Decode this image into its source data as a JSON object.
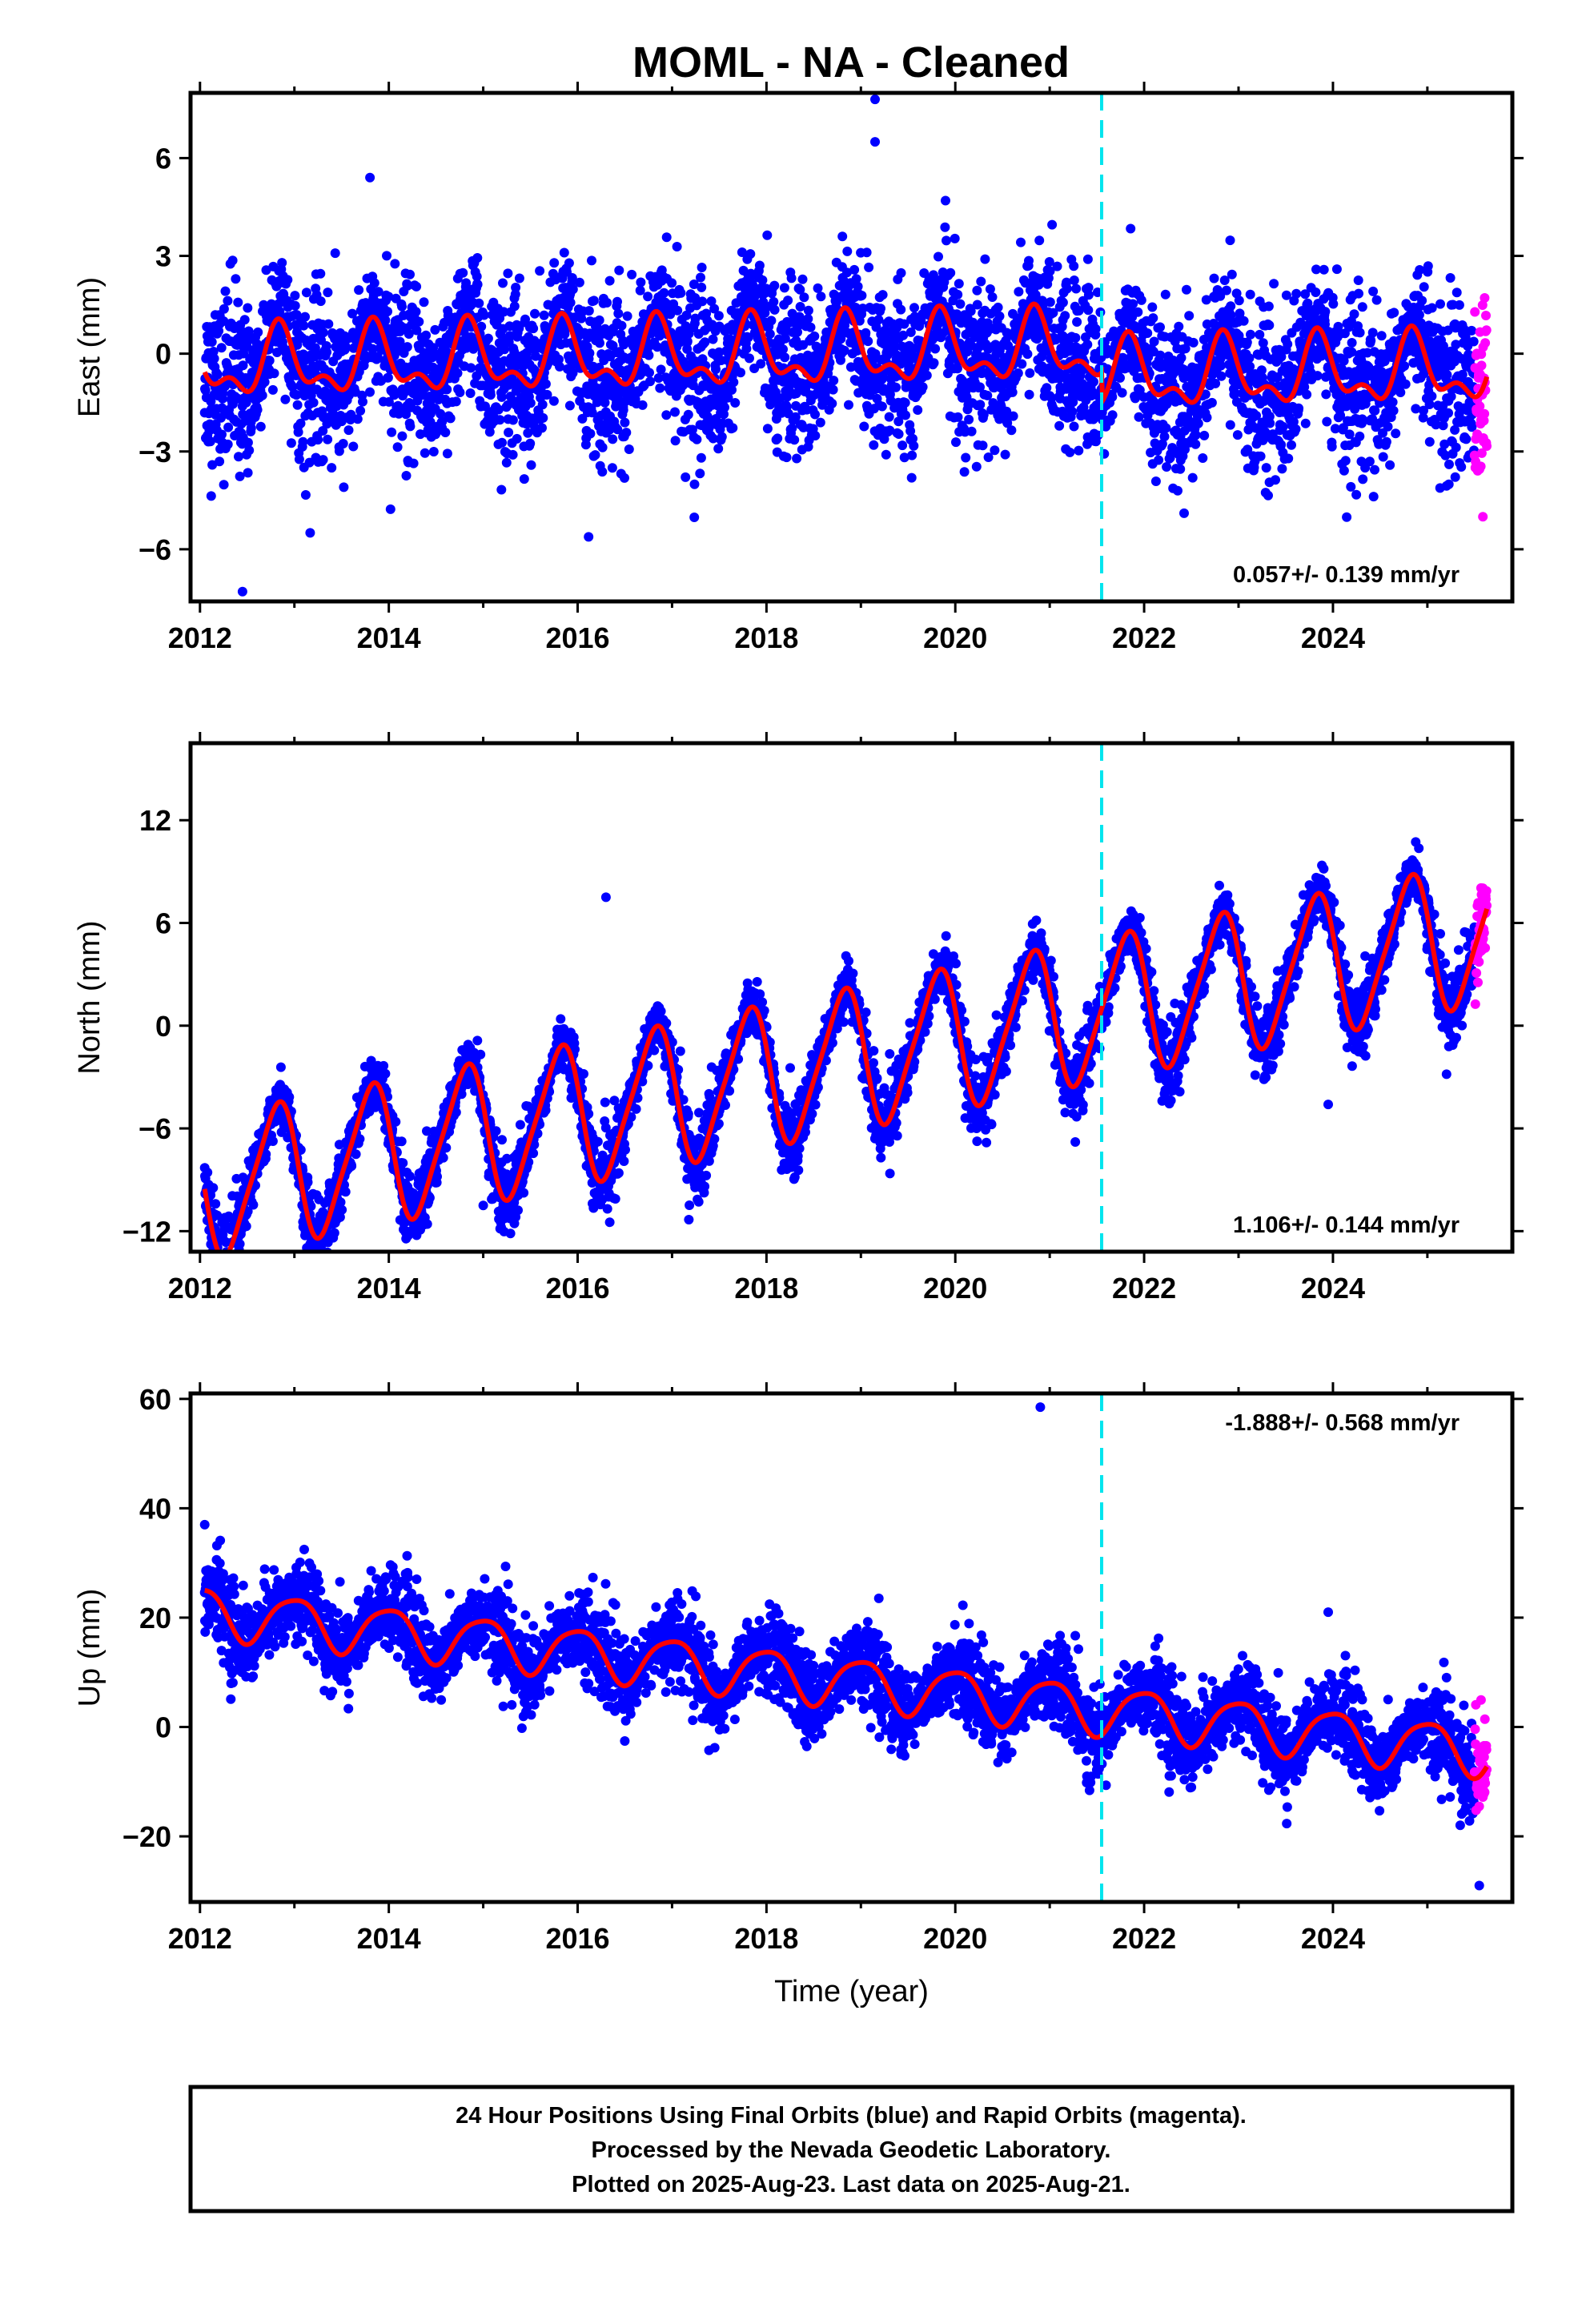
{
  "title": "MOML  - NA - Cleaned",
  "caption": {
    "line1": "24 Hour Positions Using Final Orbits (blue) and Rapid Orbits (magenta).",
    "line2": "Processed by the Nevada Geodetic Laboratory.",
    "line3": "Plotted on 2025-Aug-23. Last data on 2025-Aug-21."
  },
  "colors": {
    "final_orbit_points": "#0000ff",
    "rapid_orbit_points": "#ff00ff",
    "model_fit": "#ff0000",
    "event_line": "#00e5ee",
    "frame": "#000000"
  },
  "chart_data": [
    {
      "type": "scatter",
      "ylabel": "East (mm)",
      "xlabel": "",
      "x_ticks": [
        "2012",
        "2014",
        "2016",
        "2018",
        "2020",
        "2022",
        "2024"
      ],
      "y_ticks": [
        "6",
        "3",
        "0",
        "−3",
        "−6"
      ],
      "xlim": [
        2011.9,
        2025.9
      ],
      "ylim": [
        -7.6,
        8.0
      ],
      "event_line_x": 2021.55,
      "rate_text": "0.057+/- 0.139 mm/yr",
      "rate_position": "bottom-right",
      "model": {
        "offset": 0.0,
        "trend": 0.057,
        "annual_amp": 0.9,
        "annual_phase": 0.6,
        "semiannual_amp": 0.5,
        "semiannual_phase": 0.2,
        "step_at": 2021.55,
        "step": -0.9
      },
      "scatter_sigma": 1.1,
      "final_orbit_end": 2025.5,
      "rapid_orbit_range": [
        2025.5,
        2025.63
      ],
      "outliers": [
        [
          2019.15,
          7.8
        ],
        [
          2019.15,
          6.5
        ],
        [
          2012.45,
          -7.3
        ],
        [
          2013.8,
          5.4
        ]
      ]
    },
    {
      "type": "scatter",
      "ylabel": "North (mm)",
      "xlabel": "",
      "x_ticks": [
        "2012",
        "2014",
        "2016",
        "2018",
        "2020",
        "2022",
        "2024"
      ],
      "y_ticks": [
        "12",
        "6",
        "0",
        "−6",
        "−12"
      ],
      "xlim": [
        2011.9,
        2025.9
      ],
      "ylim": [
        -13.2,
        16.5
      ],
      "event_line_x": 2021.55,
      "rate_text": "1.106+/- 0.144 mm/yr",
      "rate_position": "bottom-right",
      "model": {
        "offset": -2.4,
        "trend": 1.106,
        "annual_amp": 4.0,
        "annual_phase": 0.55,
        "semiannual_amp": 0.7,
        "semiannual_phase": 0.3,
        "step_at": 2021.55,
        "step": 0.0
      },
      "scatter_sigma": 0.9,
      "final_orbit_end": 2025.5,
      "rapid_orbit_range": [
        2025.5,
        2025.63
      ],
      "outliers": [
        [
          2015.0,
          -10.5
        ],
        [
          2023.95,
          -4.6
        ],
        [
          2019.25,
          -6.2
        ],
        [
          2016.3,
          7.5
        ]
      ]
    },
    {
      "type": "scatter",
      "ylabel": "Up (mm)",
      "xlabel": "Time (year)",
      "x_ticks": [
        "2012",
        "2014",
        "2016",
        "2018",
        "2020",
        "2022",
        "2024"
      ],
      "y_ticks": [
        "60",
        "40",
        "20",
        "0",
        "−20"
      ],
      "xlim": [
        2011.9,
        2025.9
      ],
      "ylim": [
        -32.0,
        61.0
      ],
      "event_line_x": 2021.55,
      "rate_text": "-1.888+/- 0.568 mm/yr",
      "rate_position": "top-right",
      "model": {
        "offset": 9.0,
        "trend": -1.888,
        "annual_amp": 4.5,
        "annual_phase": 0.75,
        "semiannual_amp": 0.8,
        "semiannual_phase": 0.1,
        "step_at": 2021.55,
        "step": 0.0
      },
      "scatter_sigma": 3.6,
      "final_orbit_end": 2025.5,
      "rapid_orbit_range": [
        2025.5,
        2025.63
      ],
      "outliers": [
        [
          2020.9,
          58.5
        ],
        [
          2012.05,
          37.0
        ],
        [
          2023.95,
          21.0
        ],
        [
          2025.55,
          -29.0
        ]
      ]
    }
  ]
}
